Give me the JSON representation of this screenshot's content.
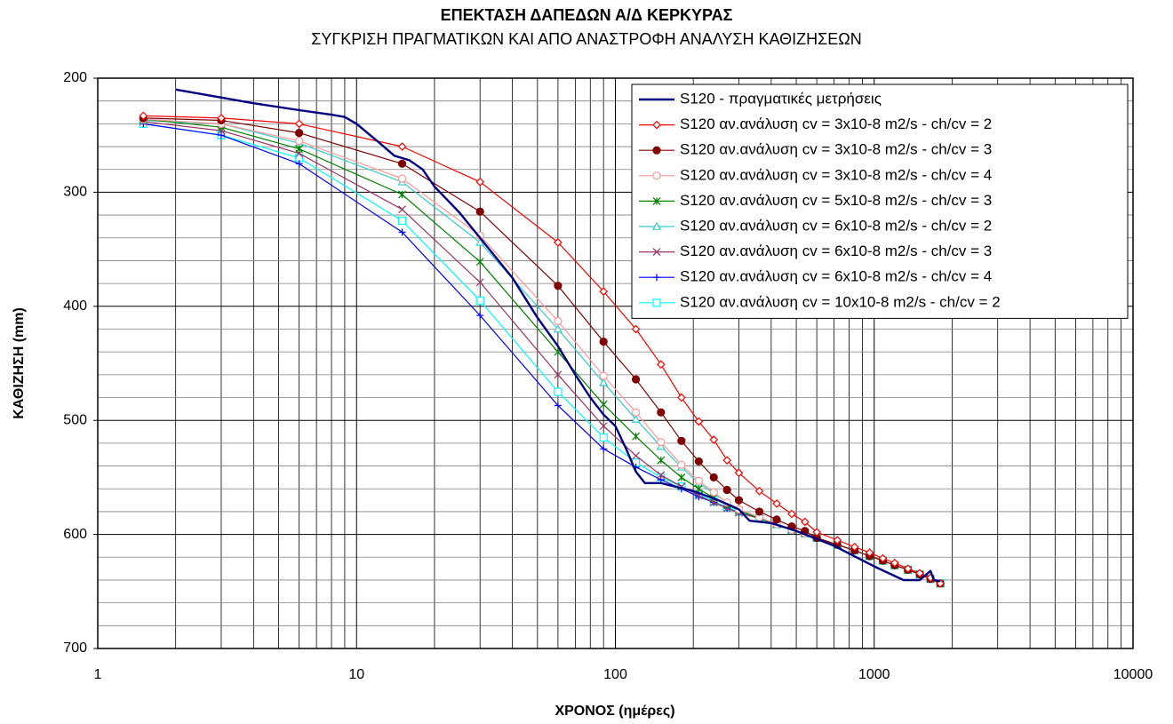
{
  "chart_data": {
    "type": "line",
    "title": "ΕΠΕΚΤΑΣΗ ΔΑΠΕΔΩΝ Α/Δ ΚΕΡΚΥΡΑΣ",
    "subtitle": "ΣΥΓΚΡΙΣΗ ΠΡΑΓΜΑΤΙΚΩΝ ΚΑΙ ΑΠΟ ΑΝΑΣΤΡΟΦΗ ΑΝΑΛΥΣΗ ΚΑΘΙΖΗΣΕΩΝ",
    "x_label": "ΧΡΟΝΟΣ (ημέρες)",
    "y_label": "ΚΑΘΙΖΗΣΗ (mm)",
    "x_log": true,
    "y_inverted": true,
    "grid": true,
    "minor_grid": true,
    "legend": "upper right",
    "xlim": [
      1,
      10000
    ],
    "xticks": [
      1,
      10,
      100,
      1000,
      10000
    ],
    "ylim": [
      200,
      700
    ],
    "yticks": [
      200,
      300,
      400,
      500,
      600,
      700
    ],
    "series": [
      {
        "name": "S120 - πραγματικές μετρήσεις",
        "color": "#000080",
        "marker": "none",
        "x": [
          2,
          4,
          6,
          8,
          9,
          10,
          12,
          14,
          16,
          18,
          20,
          25,
          30,
          40,
          50,
          60,
          70,
          80,
          90,
          100,
          110,
          120,
          130,
          150,
          170,
          200,
          250,
          300,
          330,
          400,
          500,
          700,
          1000,
          1300,
          1500,
          1650,
          1700,
          1800
        ],
        "values": [
          210,
          222,
          228,
          232,
          234,
          240,
          255,
          268,
          272,
          280,
          295,
          318,
          340,
          375,
          410,
          435,
          460,
          480,
          495,
          505,
          525,
          545,
          555,
          555,
          558,
          562,
          570,
          578,
          588,
          590,
          597,
          610,
          628,
          640,
          640,
          632,
          640,
          641
        ]
      },
      {
        "name": "S120 αν.ανάλυση cv = 3x10-8 m2/s - ch/cv = 2",
        "color": "#ff0000",
        "marker": "diamond",
        "x": [
          1.5,
          3,
          6,
          15,
          30,
          60,
          90,
          120,
          150,
          180,
          210,
          240,
          270,
          300,
          360,
          420,
          480,
          540,
          600,
          720,
          840,
          960,
          1080,
          1200,
          1350,
          1500,
          1650,
          1800
        ],
        "values": [
          233,
          235,
          240,
          260,
          291,
          344,
          387,
          420,
          451,
          480,
          501,
          517,
          535,
          546,
          562,
          573,
          582,
          589,
          598,
          605,
          611,
          616,
          621,
          625,
          630,
          634,
          638,
          643
        ]
      },
      {
        "name": "S120 αν.ανάλυση cv = 3x10-8 m2/s - ch/cv = 3",
        "color": "#800000",
        "marker": "circle",
        "x": [
          1.5,
          3,
          6,
          15,
          30,
          60,
          90,
          120,
          150,
          180,
          210,
          240,
          270,
          300,
          360,
          420,
          480,
          540,
          600,
          720,
          840,
          960,
          1080,
          1200,
          1350,
          1500,
          1650,
          1800
        ],
        "values": [
          235,
          237,
          248,
          275,
          317,
          382,
          431,
          464,
          493,
          518,
          536,
          550,
          561,
          570,
          580,
          587,
          593,
          597,
          603,
          609,
          614,
          619,
          623,
          627,
          631,
          635,
          639,
          643
        ]
      },
      {
        "name": "S120 αν.ανάλυση cv = 3x10-8 m2/s - ch/cv = 4",
        "color": "#ff9999",
        "marker": "circle-open",
        "x": [
          1.5,
          3,
          6,
          15,
          30,
          60,
          90,
          120,
          150,
          180,
          210,
          240,
          270,
          300,
          360,
          420,
          480,
          540,
          600,
          720,
          840,
          960,
          1080,
          1200,
          1350,
          1500,
          1650,
          1800
        ],
        "values": [
          236,
          240,
          255,
          288,
          338,
          413,
          461,
          493,
          519,
          539,
          553,
          563,
          572,
          578,
          585,
          591,
          596,
          599,
          603,
          609,
          614,
          619,
          623,
          627,
          631,
          635,
          639,
          643
        ]
      },
      {
        "name": "S120 αν.ανάλυση cv = 5x10-8 m2/s - ch/cv = 3",
        "color": "#008000",
        "marker": "asterisk",
        "x": [
          1.5,
          3,
          6,
          15,
          30,
          60,
          90,
          120,
          150,
          180,
          210,
          240,
          270,
          300,
          360,
          420,
          480,
          540,
          600,
          720,
          840,
          960,
          1080,
          1200,
          1350,
          1500,
          1650,
          1800
        ],
        "values": [
          236,
          243,
          262,
          302,
          361,
          440,
          486,
          514,
          535,
          550,
          560,
          568,
          574,
          579,
          586,
          591,
          596,
          599,
          603,
          609,
          614,
          619,
          623,
          627,
          631,
          635,
          639,
          643
        ]
      },
      {
        "name": "S120 αν.ανάλυση cv = 6x10-8 m2/s - ch/cv = 2",
        "color": "#33cccc",
        "marker": "triangle-open",
        "x": [
          1.5,
          3,
          6,
          15,
          30,
          60,
          90,
          120,
          150,
          180,
          210,
          240,
          270,
          300,
          360,
          420,
          480,
          540,
          600,
          720,
          840,
          960,
          1080,
          1200,
          1350,
          1500,
          1650,
          1800
        ],
        "values": [
          237,
          240,
          257,
          291,
          344,
          420,
          467,
          499,
          523,
          541,
          555,
          564,
          572,
          578,
          586,
          591,
          596,
          599,
          603,
          609,
          614,
          619,
          623,
          627,
          631,
          635,
          639,
          643
        ]
      },
      {
        "name": "S120 αν.ανάλυση cv = 6x10-8 m2/s - ch/cv = 3",
        "color": "#993366",
        "marker": "x",
        "x": [
          1.5,
          3,
          6,
          15,
          30,
          60,
          90,
          120,
          150,
          180,
          210,
          240,
          270,
          300,
          360,
          420,
          480,
          540,
          600,
          720,
          840,
          960,
          1080,
          1200,
          1350,
          1500,
          1650,
          1800
        ],
        "values": [
          238,
          246,
          266,
          315,
          379,
          460,
          505,
          531,
          548,
          558,
          566,
          572,
          577,
          581,
          586,
          591,
          596,
          599,
          603,
          609,
          614,
          619,
          623,
          627,
          631,
          635,
          639,
          643
        ]
      },
      {
        "name": "S120 αν.ανάλυση cv = 6x10-8 m2/s - ch/cv = 4",
        "color": "#0000ff",
        "marker": "plus",
        "x": [
          1.5,
          3,
          6,
          15,
          30,
          60,
          90,
          120,
          150,
          180,
          210,
          240,
          270,
          300,
          360,
          420,
          480,
          540,
          600,
          720,
          840,
          960,
          1080,
          1200,
          1350,
          1500,
          1650,
          1800
        ],
        "values": [
          240,
          250,
          275,
          335,
          408,
          487,
          525,
          541,
          552,
          560,
          567,
          572,
          577,
          581,
          586,
          591,
          596,
          599,
          603,
          609,
          614,
          619,
          623,
          627,
          631,
          635,
          639,
          643
        ]
      },
      {
        "name": "S120 αν.ανάλυση cv = 10x10-8 m2/s - ch/cv = 2",
        "color": "#00ffff",
        "marker": "square-open",
        "x": [
          1.5,
          3,
          6,
          15,
          30,
          60,
          90,
          120,
          150,
          180,
          210,
          240,
          270,
          300,
          360,
          420,
          480,
          540,
          600,
          720,
          840,
          960,
          1080,
          1200,
          1350,
          1500,
          1650,
          1800
        ],
        "values": [
          240,
          250,
          270,
          325,
          395,
          475,
          515,
          537,
          550,
          558,
          565,
          571,
          576,
          580,
          586,
          591,
          596,
          599,
          603,
          609,
          614,
          619,
          623,
          627,
          631,
          635,
          639,
          643
        ]
      }
    ]
  }
}
